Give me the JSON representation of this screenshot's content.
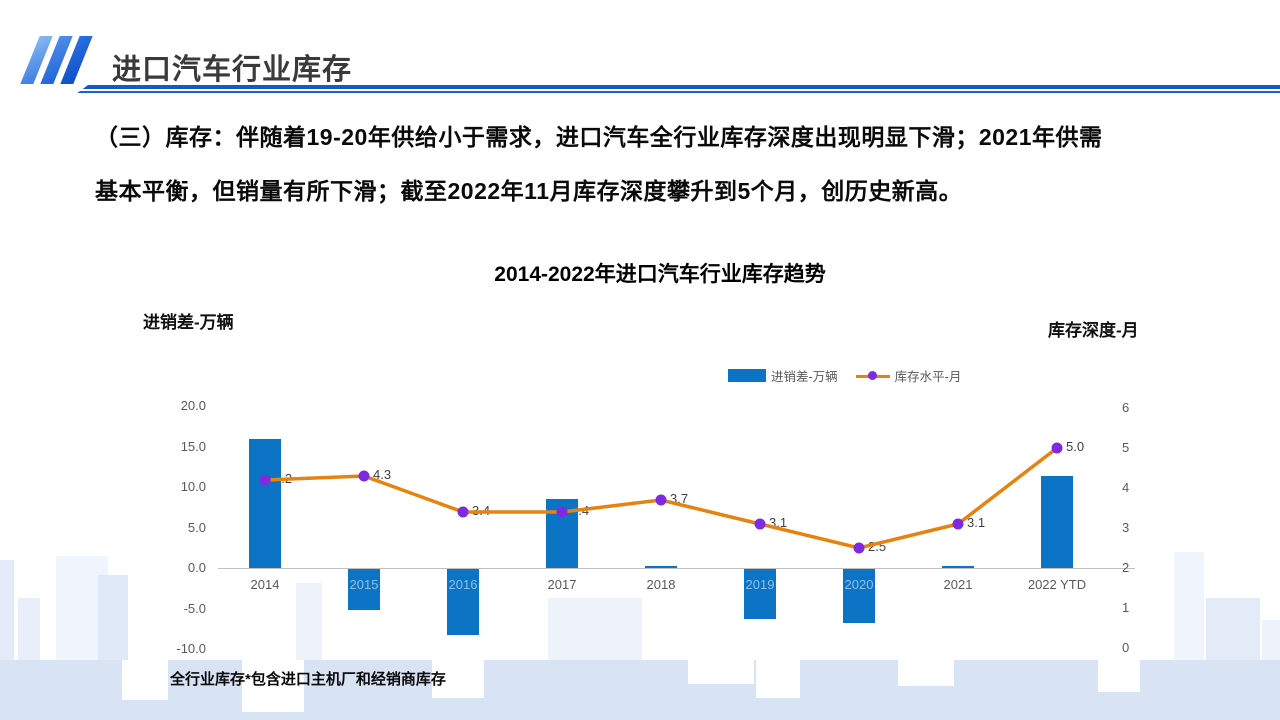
{
  "header": {
    "title": "进口汽车行业库存"
  },
  "body": {
    "line1": "（三）库存：伴随着19-20年供给小于需求，进口汽车全行业库存深度出现明显下滑；2021年供需",
    "line2": "基本平衡，但销量有所下滑；截至2022年11月库存深度攀升到5个月，创历史新高。"
  },
  "chart_data": {
    "type": "combo-bar-line",
    "title": "2014-2022年进口汽车行业库存趋势",
    "categories": [
      "2014",
      "2015",
      "2016",
      "2017",
      "2018",
      "2019",
      "2020",
      "2021",
      "2022 YTD"
    ],
    "series": [
      {
        "name": "进销差-万辆",
        "type": "bar",
        "axis": "left",
        "color": "#0b74c4",
        "values": [
          15.9,
          -5.0,
          -8.1,
          8.5,
          0.3,
          -6.2,
          -6.7,
          0.2,
          11.4
        ]
      },
      {
        "name": "库存水平-月",
        "type": "line",
        "axis": "right",
        "color": "#e8820e",
        "marker_color": "#7d2ae0",
        "values": [
          4.2,
          4.3,
          3.4,
          3.4,
          3.7,
          3.1,
          2.5,
          3.1,
          5.0
        ],
        "point_labels": [
          "4.2",
          "4.3",
          "3.4",
          "3.4",
          "3.7",
          "3.1",
          "2.5",
          "3.1",
          "5.0"
        ]
      }
    ],
    "left_axis": {
      "title": "进销差-万辆",
      "tick_labels": [
        "20.0",
        "15.0",
        "10.0",
        "5.0",
        "0.0",
        "-5.0",
        "-10.0"
      ],
      "max": 20,
      "min": -10
    },
    "right_axis": {
      "title": "库存深度-月",
      "tick_labels": [
        "6",
        "5",
        "4",
        "3",
        "2",
        "1",
        "0"
      ],
      "max": 6,
      "min": 0
    },
    "legend": [
      "进销差-万辆",
      "库存水平-月"
    ],
    "legend_position": "top",
    "grid": "baseline-only",
    "footnote": "全行业库存*包含进口主机厂和经销商库存"
  }
}
